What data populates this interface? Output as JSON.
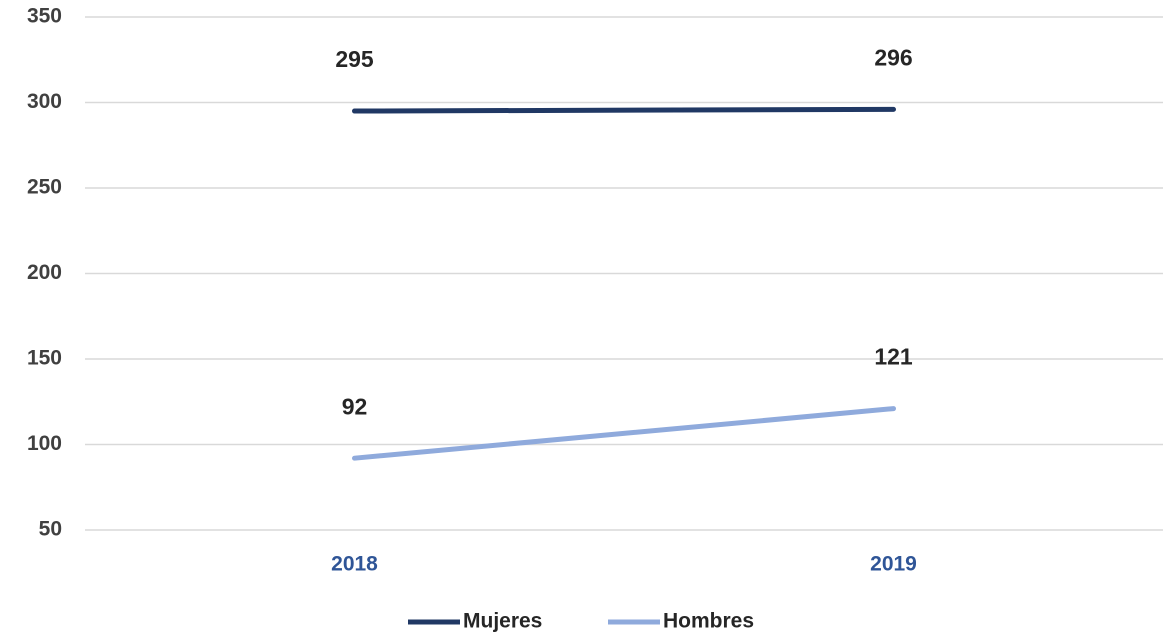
{
  "chart_data": {
    "type": "line",
    "categories": [
      "2018",
      "2019"
    ],
    "series": [
      {
        "name": "Mujeres",
        "color": "#203864",
        "values": [
          295,
          296
        ]
      },
      {
        "name": "Hombres",
        "color": "#8faadc",
        "values": [
          92,
          121
        ]
      }
    ],
    "ylim": [
      50,
      350
    ],
    "yticks": [
      50,
      100,
      150,
      200,
      250,
      300,
      350
    ],
    "grid": true
  }
}
